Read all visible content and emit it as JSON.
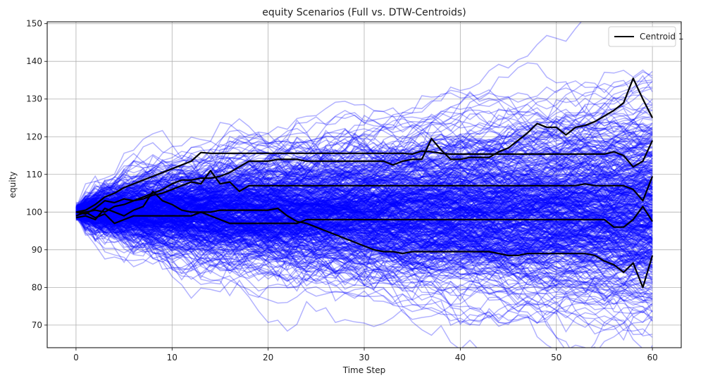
{
  "chart_data": {
    "type": "line",
    "title": "equity Scenarios (Full vs. DTW-Centroids)",
    "xlabel": "Time Step",
    "ylabel": "equity",
    "xlim": [
      -3,
      63
    ],
    "ylim": [
      64,
      150.5
    ],
    "xticks": [
      0,
      10,
      20,
      30,
      40,
      50,
      60
    ],
    "yticks": [
      70,
      80,
      90,
      100,
      110,
      120,
      130,
      140,
      150
    ],
    "grid": true,
    "legend": {
      "position": "top-right",
      "entries": [
        {
          "label": "Centroid 1",
          "color": "#000000"
        }
      ]
    },
    "scenario_color": "#0000ff",
    "centroid_color": "#000000",
    "scenarios": {
      "count": 500,
      "steps": 61,
      "start": 100,
      "note_range_at_step_60": [
        68,
        140
      ]
    },
    "series": [
      {
        "name": "Centroid 1",
        "x": [
          0,
          1,
          2,
          3,
          4,
          5,
          6,
          7,
          8,
          9,
          10,
          11,
          12,
          13,
          14,
          15,
          16,
          17,
          18,
          19,
          20,
          21,
          22,
          23,
          24,
          25,
          26,
          27,
          28,
          29,
          30,
          31,
          32,
          33,
          34,
          35,
          36,
          37,
          38,
          39,
          40,
          41,
          42,
          43,
          44,
          45,
          46,
          47,
          48,
          49,
          50,
          51,
          52,
          53,
          54,
          55,
          56,
          57,
          58,
          59,
          60
        ],
        "values": [
          100,
          100.5,
          102,
          104,
          105,
          106.5,
          107.5,
          108.5,
          109.5,
          110.5,
          111.5,
          112.5,
          113.5,
          115.8,
          115.6,
          115.6,
          115.6,
          115.6,
          115.6,
          115.6,
          115.6,
          115.6,
          115.6,
          115.6,
          115.6,
          115.6,
          115.6,
          115.6,
          115.6,
          115.6,
          115.6,
          115.6,
          115.6,
          115.6,
          115.6,
          115.4,
          116.2,
          116,
          115.6,
          115.4,
          115.4,
          115.4,
          115.4,
          115.4,
          115.4,
          115.4,
          115.4,
          115.4,
          115.4,
          115.4,
          115.4,
          115.4,
          115.4,
          115.4,
          115.4,
          115.4,
          116,
          115,
          112,
          113.5,
          119
        ]
      },
      {
        "name": "",
        "x": [
          0,
          1,
          2,
          3,
          4,
          5,
          6,
          7,
          8,
          9,
          10,
          11,
          12,
          13,
          14,
          15,
          16,
          17,
          18,
          19,
          20,
          21,
          22,
          23,
          24,
          25,
          26,
          27,
          28,
          29,
          30,
          31,
          32,
          33,
          34,
          35,
          36,
          37,
          38,
          39,
          40,
          41,
          42,
          43,
          44,
          45,
          46,
          47,
          48,
          49,
          50,
          51,
          52,
          53,
          54,
          55,
          56,
          57,
          58,
          59,
          60
        ],
        "values": [
          100,
          99.5,
          101,
          103,
          102.5,
          103.5,
          103,
          104,
          105,
          106,
          107.5,
          108.5,
          108.5,
          109,
          109,
          109.5,
          110.5,
          112,
          113.5,
          113.5,
          113.5,
          114,
          114,
          114,
          113.5,
          113.5,
          113.5,
          113.5,
          113.5,
          113.5,
          113.5,
          113.5,
          113.5,
          112.5,
          113.5,
          114,
          114,
          119.5,
          116.5,
          114,
          114,
          114.5,
          114.5,
          114.5,
          116,
          117,
          119,
          121,
          123.5,
          122.5,
          122.5,
          120.5,
          122.5,
          123,
          124,
          125.5,
          127,
          129,
          135.5,
          130,
          125
        ]
      },
      {
        "name": "",
        "x": [
          0,
          1,
          2,
          3,
          4,
          5,
          6,
          7,
          8,
          9,
          10,
          11,
          12,
          13,
          14,
          15,
          16,
          17,
          18,
          19,
          20,
          21,
          22,
          23,
          24,
          25,
          26,
          27,
          28,
          29,
          30,
          31,
          32,
          33,
          34,
          35,
          36,
          37,
          38,
          39,
          40,
          41,
          42,
          43,
          44,
          45,
          46,
          47,
          48,
          49,
          50,
          51,
          52,
          53,
          54,
          55,
          56,
          57,
          58,
          59,
          60
        ],
        "values": [
          99,
          100,
          100.5,
          100,
          101.5,
          102,
          103,
          103.5,
          104.5,
          105,
          106,
          107,
          108,
          107.5,
          111,
          107.5,
          108,
          105.5,
          107,
          107,
          107,
          107,
          107,
          107,
          107,
          107,
          107,
          107,
          107,
          107,
          107,
          107,
          107,
          107,
          107,
          107,
          107,
          107,
          107,
          107,
          107,
          107,
          107,
          107,
          107,
          107,
          107,
          107,
          107,
          107,
          107,
          107,
          107,
          107.5,
          107,
          107,
          107,
          107,
          106,
          103,
          109.5
        ]
      },
      {
        "name": "",
        "x": [
          0,
          1,
          2,
          3,
          4,
          5,
          6,
          7,
          8,
          9,
          10,
          11,
          12,
          13,
          14,
          15,
          16,
          17,
          18,
          19,
          20,
          21,
          22,
          23,
          24,
          25,
          26,
          27,
          28,
          29,
          30,
          31,
          32,
          33,
          34,
          35,
          36,
          37,
          38,
          39,
          40,
          41,
          42,
          43,
          44,
          45,
          46,
          47,
          48,
          49,
          50,
          51,
          52,
          53,
          54,
          55,
          56,
          57,
          58,
          59,
          60
        ],
        "values": [
          100,
          100,
          98.5,
          99.5,
          97,
          98,
          99,
          99,
          99,
          99,
          99,
          99,
          99,
          100,
          99,
          98,
          97,
          97,
          97,
          97,
          97,
          97,
          97,
          97,
          98,
          98,
          98,
          98,
          98,
          98,
          98,
          98,
          98,
          98,
          98,
          98,
          98,
          98,
          98,
          98,
          98,
          98,
          98,
          98,
          98,
          98,
          98,
          98,
          98,
          98,
          98,
          98,
          98,
          98,
          98,
          98,
          96,
          96,
          98,
          101.5,
          97.5
        ]
      },
      {
        "name": "",
        "x": [
          0,
          1,
          2,
          3,
          4,
          5,
          6,
          7,
          8,
          9,
          10,
          11,
          12,
          13,
          14,
          15,
          16,
          17,
          18,
          19,
          20,
          21,
          22,
          23,
          24,
          25,
          26,
          27,
          28,
          29,
          30,
          31,
          32,
          33,
          34,
          35,
          36,
          37,
          38,
          39,
          40,
          41,
          42,
          43,
          44,
          45,
          46,
          47,
          48,
          49,
          50,
          51,
          52,
          53,
          54,
          55,
          56,
          57,
          58,
          59,
          60
        ],
        "values": [
          98.5,
          99,
          98,
          101,
          100,
          99,
          100.5,
          101.5,
          105.5,
          103,
          102,
          100.5,
          100,
          100,
          100,
          100.5,
          100.5,
          100.5,
          100.5,
          100.5,
          100.5,
          101,
          99,
          97.5,
          97,
          96,
          95,
          94,
          93,
          92,
          91,
          90,
          89.5,
          89.5,
          89,
          89.5,
          89.5,
          89.5,
          89.5,
          89.5,
          89.5,
          89.5,
          89.5,
          89.5,
          89,
          88.5,
          88.5,
          89,
          89,
          89,
          89,
          89,
          89,
          89,
          88.5,
          87,
          86,
          84,
          86.5,
          80,
          88.5
        ]
      }
    ]
  }
}
